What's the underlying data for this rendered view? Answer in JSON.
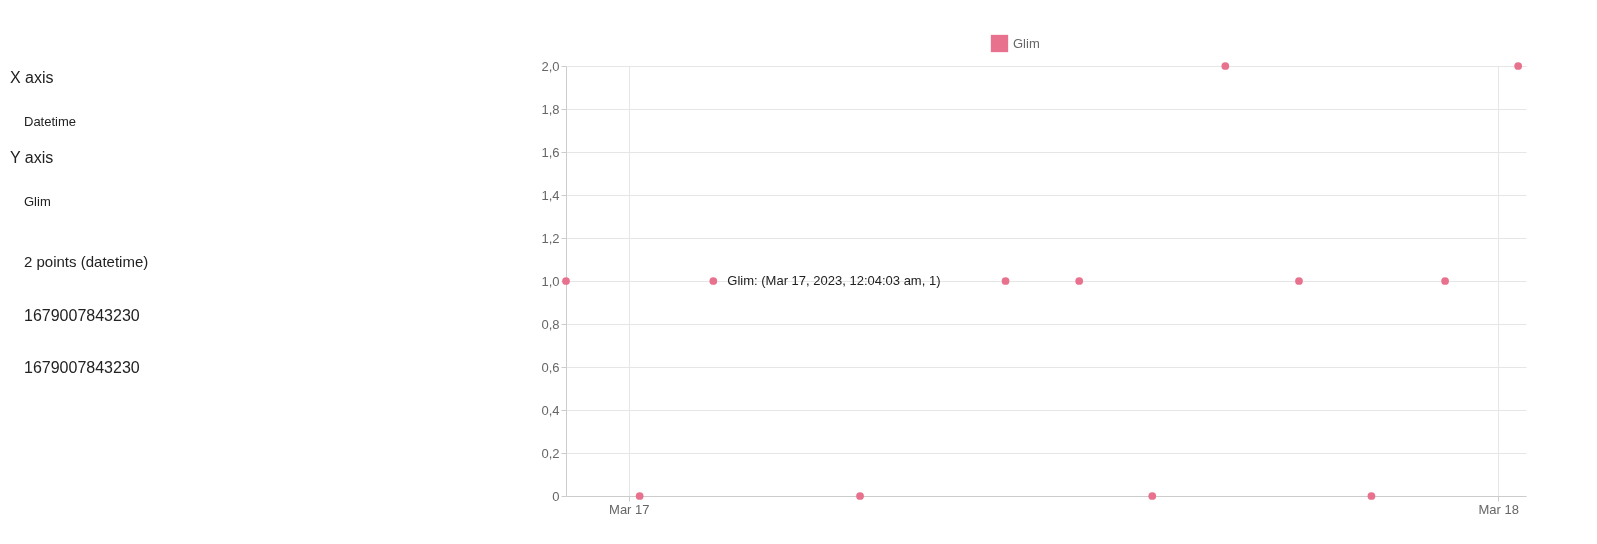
{
  "chart_data": {
    "type": "scatter",
    "series": [
      {
        "name": "Glim",
        "color": "#e8718d",
        "x": [
          "2023-03-16T22:16",
          "2023-03-17T00:18",
          "2023-03-17T02:20",
          "2023-03-17T06:23",
          "2023-03-17T10:24",
          "2023-03-17T12:26",
          "2023-03-17T14:27",
          "2023-03-17T16:28",
          "2023-03-17T18:30",
          "2023-03-17T20:30",
          "2023-03-17T22:32",
          "2023-03-18T00:33"
        ],
        "values": [
          1,
          0,
          1,
          0,
          1,
          1,
          0,
          2,
          1,
          0,
          1,
          2
        ]
      }
    ],
    "xlim": [
      "2023-03-16T22:16",
      "2023-03-18T00:46"
    ],
    "xticks": [
      {
        "value": "2023-03-17T00:00",
        "label": "Mar 17"
      },
      {
        "value": "2023-03-18T00:00",
        "label": "Mar 18"
      }
    ],
    "ylim": [
      0,
      2
    ],
    "yticks": [
      0,
      {
        "value": 0.2,
        "label": "0,2"
      },
      {
        "value": 0.4,
        "label": "0,4"
      },
      {
        "value": 0.6,
        "label": "0,6"
      },
      {
        "value": 0.8,
        "label": "0,8"
      },
      {
        "value": 1.0,
        "label": "1,0"
      },
      {
        "value": 1.2,
        "label": "1,2"
      },
      {
        "value": 1.4,
        "label": "1,4"
      },
      {
        "value": 1.6,
        "label": "1,6"
      },
      {
        "value": 1.8,
        "label": "1,8"
      },
      {
        "value": 2.0,
        "label": "2,0"
      }
    ],
    "grid": true,
    "legend": "top",
    "marker": "circle",
    "annotations": [
      "X axis",
      "Datetime",
      "Y axis",
      "Glim",
      "2 points (datetime)",
      "1679007843230",
      "1679007843230",
      {
        "text": "Glim: (Mar 17, 2023, 12:04:03 am, 1)",
        "x": "2023-03-17T02:20",
        "y": 1
      }
    ]
  }
}
